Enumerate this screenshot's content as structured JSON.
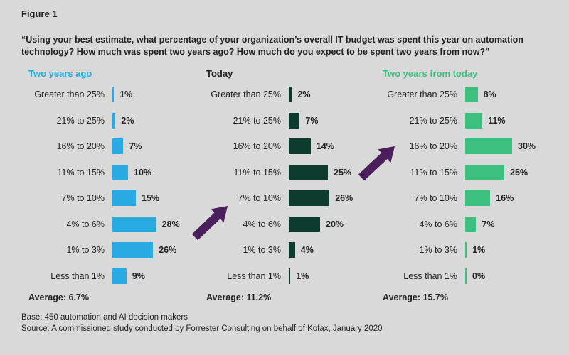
{
  "figure_label": "Figure 1",
  "question": "“Using your best estimate, what percentage of your organization’s overall IT budget was spent this year on automation technology? How much was spent two years ago? How much do you expect to be spent two years from now?”",
  "colors": {
    "two_years_ago": "#29abe2",
    "today": "#0d3b2e",
    "two_years_from_today": "#3dbf7f",
    "arrow": "#4b1e5c"
  },
  "chart_data": [
    {
      "type": "bar",
      "orientation": "horizontal",
      "title": "Two years ago",
      "categories": [
        "Greater than 25%",
        "21% to 25%",
        "16% to 20%",
        "11% to 15%",
        "7% to 10%",
        "4% to 6%",
        "1% to 3%",
        "Less than 1%"
      ],
      "values": [
        1,
        2,
        7,
        10,
        15,
        28,
        26,
        9
      ],
      "value_labels": [
        "1%",
        "2%",
        "7%",
        "10%",
        "15%",
        "28%",
        "26%",
        "9%"
      ],
      "average": "Average: 6.7%"
    },
    {
      "type": "bar",
      "orientation": "horizontal",
      "title": "Today",
      "categories": [
        "Greater than 25%",
        "21% to 25%",
        "16% to 20%",
        "11% to 15%",
        "7% to 10%",
        "4% to 6%",
        "1% to 3%",
        "Less than 1%"
      ],
      "values": [
        2,
        7,
        14,
        25,
        26,
        20,
        4,
        1
      ],
      "value_labels": [
        "2%",
        "7%",
        "14%",
        "25%",
        "26%",
        "20%",
        "4%",
        "1%"
      ],
      "average": "Average: 11.2%"
    },
    {
      "type": "bar",
      "orientation": "horizontal",
      "title": "Two years from today",
      "categories": [
        "Greater than 25%",
        "21% to 25%",
        "16% to 20%",
        "11% to 15%",
        "7% to 10%",
        "4% to 6%",
        "1% to 3%",
        "Less than 1%"
      ],
      "values": [
        8,
        11,
        30,
        25,
        16,
        7,
        1,
        0
      ],
      "value_labels": [
        "8%",
        "11%",
        "30%",
        "25%",
        "16%",
        "7%",
        "1%",
        "0%"
      ],
      "average": "Average: 15.7%"
    }
  ],
  "footnotes": {
    "base": "Base: 450 automation and AI decision makers",
    "source": "Source: A commissioned study conducted by Forrester Consulting on behalf of Kofax, January 2020"
  }
}
